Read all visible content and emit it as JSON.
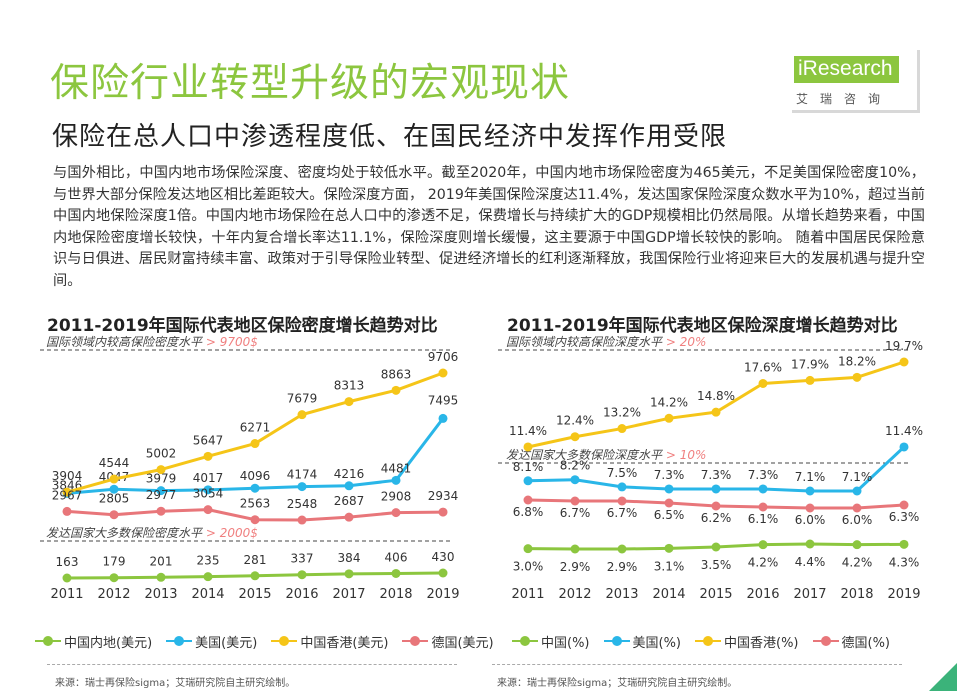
{
  "header": {
    "title": "保险行业转型升级的宏观现状",
    "subtitle": "保险在总人口中渗透程度低、在国民经济中发挥作用受限"
  },
  "logo": {
    "brand": "iResearch",
    "cn": "艾瑞咨询"
  },
  "body_text": "与国外相比，中国内地市场保险深度、密度均处于较低水平。截至2020年，中国内地市场保险密度为465美元，不足美国保险密度10%，与世界大部分保险发达地区相比差距较大。保险深度方面，  2019年美国保险深度达11.4%，发达国家保险深度众数水平为10%，超过当前中国内地保险深度1倍。中国内地市场保险在总人口中的渗透不足，保费增长与持续扩大的GDP规模相比仍然局限。从增长趋势来看，中国内地保险密度增长较快，十年内复合增长率达11.1%，保险深度则增长缓慢，这主要源于中国GDP增长较快的影响。  随着中国居民保险意识与日俱进、居民财富持续丰富、政策对于引导保险业转型、促进经济增长的红利逐渐释放，我国保险行业将迎来巨大的发展机遇与提升空间。",
  "colors": {
    "green": "#8cc63f",
    "blue": "#29b6e8",
    "yellow": "#f5c518",
    "pink": "#e8767a",
    "ref_red": "#f08080",
    "accent": "#8cc63f"
  },
  "chart_data": [
    {
      "type": "line",
      "title": "2011-2019年国际代表地区保险密度增长趋势对比",
      "categories": [
        "2011",
        "2012",
        "2013",
        "2014",
        "2015",
        "2016",
        "2017",
        "2018",
        "2019"
      ],
      "series": [
        {
          "name": "中国内地(美元)",
          "color": "#8cc63f",
          "values": [
            163,
            179,
            201,
            235,
            281,
            337,
            384,
            406,
            430
          ]
        },
        {
          "name": "美国(美元)",
          "color": "#29b6e8",
          "values": [
            3846,
            4047,
            3979,
            4017,
            4096,
            4174,
            4216,
            4481,
            7495
          ]
        },
        {
          "name": "中国香港(美元)",
          "color": "#f5c518",
          "values": [
            3904,
            4544,
            5002,
            5647,
            6271,
            7679,
            8313,
            8863,
            9706
          ]
        },
        {
          "name": "德国(美元)",
          "color": "#e8767a",
          "values": [
            2967,
            2805,
            2977,
            3054,
            2563,
            2548,
            2687,
            2908,
            2934
          ]
        }
      ],
      "labels": {
        "中国内地(美元)": [
          "163",
          "179",
          "201",
          "235",
          "281",
          "337",
          "384",
          "406",
          "430"
        ],
        "美国(美元)": [
          "3846",
          "4047",
          "3979",
          "4017",
          "4096",
          "4174",
          "4216",
          "4481",
          "7495"
        ],
        "中国香港(美元)": [
          "3904",
          "4544",
          "5002",
          "5647",
          "6271",
          "7679",
          "8313",
          "8863",
          "9706"
        ],
        "德国(美元)": [
          "2967",
          "2805",
          "2977",
          "3054",
          "2563",
          "2548",
          "2687",
          "2908",
          "2934"
        ]
      },
      "reference_lines": [
        {
          "label": "国际领域内较高保险密度水平",
          "value_label": "> 9700$"
        },
        {
          "label": "发达国家大多数保险密度水平",
          "value_label": "> 2000$"
        }
      ],
      "legend": "bottom",
      "source": "来源：瑞士再保险sigma；艾瑞研究院自主研究绘制。"
    },
    {
      "type": "line",
      "title": "2011-2019年国际代表地区保险深度增长趋势对比",
      "categories": [
        "2011",
        "2012",
        "2013",
        "2014",
        "2015",
        "2016",
        "2017",
        "2018",
        "2019"
      ],
      "series": [
        {
          "name": "中国(%)",
          "color": "#8cc63f",
          "values": [
            3.0,
            2.9,
            2.9,
            3.1,
            3.5,
            4.2,
            4.4,
            4.2,
            4.3
          ]
        },
        {
          "name": "美国(%)",
          "color": "#29b6e8",
          "values": [
            8.1,
            8.2,
            7.5,
            7.3,
            7.3,
            7.3,
            7.1,
            7.1,
            11.4
          ]
        },
        {
          "name": "中国香港(%)",
          "color": "#f5c518",
          "values": [
            11.4,
            12.4,
            13.2,
            14.2,
            14.8,
            17.6,
            17.9,
            18.2,
            19.7
          ]
        },
        {
          "name": "德国(%)",
          "color": "#e8767a",
          "values": [
            6.8,
            6.7,
            6.7,
            6.5,
            6.2,
            6.1,
            6.0,
            6.0,
            6.3
          ]
        }
      ],
      "labels": {
        "中国(%)": [
          "3.0%",
          "2.9%",
          "2.9%",
          "3.1%",
          "3.5%",
          "4.2%",
          "4.4%",
          "4.2%",
          "4.3%"
        ],
        "美国(%)": [
          "8.1%",
          "8.2%",
          "7.5%",
          "7.3%",
          "7.3%",
          "7.3%",
          "7.1%",
          "7.1%",
          "11.4%"
        ],
        "中国香港(%)": [
          "11.4%",
          "12.4%",
          "13.2%",
          "14.2%",
          "14.8%",
          "17.6%",
          "17.9%",
          "18.2%",
          "19.7%"
        ],
        "德国(%)": [
          "6.8%",
          "6.7%",
          "6.7%",
          "6.5%",
          "6.2%",
          "6.1%",
          "6.0%",
          "6.0%",
          "6.3%"
        ]
      },
      "reference_lines": [
        {
          "label": "国际领域内较高保险深度水平",
          "value_label": "> 20%"
        },
        {
          "label": "发达国家大多数保险深度水平",
          "value_label": "> 10%"
        }
      ],
      "legend": "bottom",
      "source": "来源：瑞士再保险sigma；艾瑞研究院自主研究绘制。"
    }
  ]
}
